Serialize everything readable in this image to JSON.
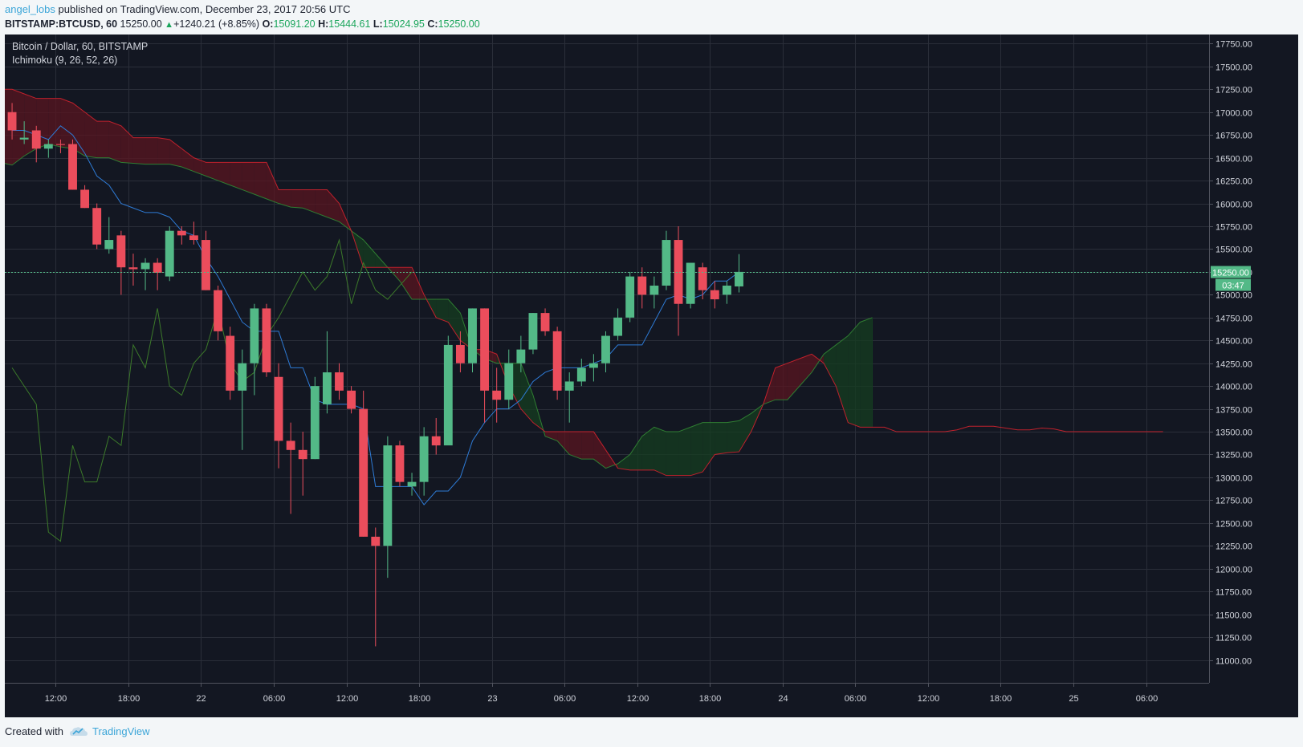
{
  "header": {
    "author": "angel_lobs",
    "published_text": " published on TradingView.com, December 23, 2017 20:56 UTC",
    "symbol": "BITSTAMP:BTCUSD, 60",
    "last": "15250.00",
    "change": "+1240.21 (+8.85%)",
    "o_label": "O:",
    "o_value": "15091.20",
    "h_label": "H:",
    "h_value": "15444.61",
    "l_label": "L:",
    "l_value": "15024.95",
    "c_label": "C:",
    "c_value": "15250.00"
  },
  "footer": {
    "created_with": "Created with",
    "brand": "TradingView",
    "logo_icon": "tradingview-cloud-icon"
  },
  "colors": {
    "background": "#131722",
    "grid": "#2a2e39",
    "up": "#53b987",
    "down": "#eb4d5c",
    "conversion": "#2e7bd6",
    "lagging": "#3c7a2a",
    "leading_a": "#2f7d32",
    "leading_b": "#c0212c",
    "cloud_bear": "#5a1520",
    "cloud_bull": "#153d20",
    "price_label": "#53b987"
  },
  "chart_data": {
    "type": "candlestick",
    "title": "Bitcoin / Dollar, 60, BITSTAMP",
    "indicator": "Ichimoku (9, 26, 52, 26)",
    "ylim": [
      10750,
      17850
    ],
    "y_ticks": [
      11000,
      11250,
      11500,
      11750,
      12000,
      12250,
      12500,
      12750,
      13000,
      13250,
      13500,
      13750,
      14000,
      14250,
      14500,
      14750,
      15000,
      15250,
      15500,
      15750,
      16000,
      16250,
      16500,
      16750,
      17000,
      17250,
      17500,
      17750
    ],
    "y_tick_labels": [
      "11000.00",
      "11250.00",
      "11500.00",
      "11750.00",
      "12000.00",
      "12250.00",
      "12500.00",
      "12750.00",
      "13000.00",
      "13250.00",
      "13500.00",
      "13750.00",
      "14000.00",
      "14250.00",
      "14500.00",
      "14750.00",
      "15000.00",
      "15250.00",
      "15500.00",
      "15750.00",
      "16000.00",
      "16250.00",
      "16500.00",
      "16750.00",
      "17000.00",
      "17250.00",
      "17500.00",
      "17750.00"
    ],
    "x_range": [
      -0.6,
      98.8
    ],
    "x_ticks": [
      {
        "i": 3.6,
        "label": "12:00"
      },
      {
        "i": 9.6,
        "label": "18:00"
      },
      {
        "i": 15.6,
        "label": "22"
      },
      {
        "i": 21.6,
        "label": "06:00"
      },
      {
        "i": 27.6,
        "label": "12:00"
      },
      {
        "i": 33.6,
        "label": "18:00"
      },
      {
        "i": 39.6,
        "label": "23"
      },
      {
        "i": 45.6,
        "label": "06:00"
      },
      {
        "i": 51.6,
        "label": "12:00"
      },
      {
        "i": 57.6,
        "label": "18:00"
      },
      {
        "i": 63.6,
        "label": "24"
      },
      {
        "i": 69.6,
        "label": "06:00"
      },
      {
        "i": 75.6,
        "label": "12:00"
      },
      {
        "i": 81.6,
        "label": "18:00"
      },
      {
        "i": 87.6,
        "label": "25"
      },
      {
        "i": 93.6,
        "label": "06:00"
      }
    ],
    "candles": [
      [
        17000,
        17100,
        16700,
        16800
      ],
      [
        16700,
        16900,
        16650,
        16720
      ],
      [
        16800,
        16850,
        16450,
        16600
      ],
      [
        16600,
        16700,
        16500,
        16650
      ],
      [
        16650,
        16700,
        16550,
        16640
      ],
      [
        16650,
        16700,
        16150,
        16150
      ],
      [
        16150,
        16200,
        15950,
        15950
      ],
      [
        15950,
        16000,
        15500,
        15550
      ],
      [
        15500,
        15850,
        15450,
        15600
      ],
      [
        15650,
        15700,
        15000,
        15300
      ],
      [
        15300,
        15450,
        15100,
        15280
      ],
      [
        15280,
        15400,
        15050,
        15350
      ],
      [
        15350,
        15400,
        15050,
        15240
      ],
      [
        15200,
        15750,
        15150,
        15700
      ],
      [
        15700,
        15750,
        15550,
        15650
      ],
      [
        15650,
        15800,
        15550,
        15600
      ],
      [
        15600,
        15700,
        15050,
        15050
      ],
      [
        15050,
        15100,
        14500,
        14600
      ],
      [
        14550,
        14650,
        13850,
        13950
      ],
      [
        13950,
        14400,
        13300,
        14250
      ],
      [
        14250,
        14900,
        13900,
        14850
      ],
      [
        14850,
        14900,
        14100,
        14150
      ],
      [
        14100,
        14250,
        13100,
        13400
      ],
      [
        13400,
        13600,
        12600,
        13300
      ],
      [
        13300,
        13500,
        12800,
        13200
      ],
      [
        13200,
        14100,
        13200,
        14000
      ],
      [
        13800,
        14600,
        13700,
        14150
      ],
      [
        14150,
        14250,
        13850,
        13950
      ],
      [
        13950,
        14000,
        13700,
        13750
      ],
      [
        13750,
        13950,
        12350,
        12350
      ],
      [
        12350,
        12450,
        11150,
        12250
      ],
      [
        12250,
        13450,
        11900,
        13350
      ],
      [
        13350,
        13400,
        12900,
        12950
      ],
      [
        12900,
        13050,
        12800,
        12950
      ],
      [
        12950,
        13550,
        12800,
        13450
      ],
      [
        13450,
        13650,
        13250,
        13350
      ],
      [
        13350,
        14550,
        13400,
        14450
      ],
      [
        14450,
        14600,
        14150,
        14250
      ],
      [
        14250,
        14850,
        14150,
        14850
      ],
      [
        14850,
        14850,
        13600,
        13950
      ],
      [
        13950,
        14200,
        13600,
        13850
      ],
      [
        13850,
        14400,
        13750,
        14250
      ],
      [
        14250,
        14550,
        14150,
        14400
      ],
      [
        14400,
        14800,
        14350,
        14800
      ],
      [
        14800,
        14850,
        14550,
        14600
      ],
      [
        14600,
        14650,
        13850,
        13950
      ],
      [
        13950,
        14150,
        13600,
        14050
      ],
      [
        14050,
        14300,
        14000,
        14200
      ],
      [
        14200,
        14350,
        14050,
        14250
      ],
      [
        14250,
        14600,
        14150,
        14550
      ],
      [
        14550,
        14850,
        14500,
        14750
      ],
      [
        14750,
        15250,
        14700,
        15200
      ],
      [
        15200,
        15300,
        14850,
        15000
      ],
      [
        15000,
        15200,
        14850,
        15100
      ],
      [
        15100,
        15700,
        15050,
        15600
      ],
      [
        15600,
        15750,
        14550,
        14900
      ],
      [
        14900,
        15350,
        14850,
        15350
      ],
      [
        15300,
        15350,
        14950,
        15050
      ],
      [
        15050,
        15150,
        14850,
        14950
      ],
      [
        15000,
        15150,
        14900,
        15100
      ],
      [
        15091.2,
        15444.61,
        15024.95,
        15250.0
      ]
    ],
    "series": [
      {
        "name": "conversion_line",
        "start": 0,
        "values": [
          16800,
          16800,
          16750,
          16700,
          16850,
          16750,
          16550,
          16300,
          16200,
          16000,
          15950,
          15900,
          15900,
          15850,
          15700,
          15650,
          15400,
          15200,
          14950,
          14700,
          14600,
          14600,
          14600,
          14200,
          14200,
          13850,
          13800,
          13800,
          13800,
          13750,
          12900,
          12900,
          12900,
          12900,
          12700,
          12850,
          12850,
          13000,
          13400,
          13600,
          13750,
          13750,
          13850,
          14050,
          14150,
          14200,
          14200,
          14200,
          14250,
          14300,
          14450,
          14450,
          14450,
          14700,
          14950,
          15000,
          14950,
          15000,
          15150,
          15150,
          15250
        ]
      },
      {
        "name": "lagging_span",
        "start": 0,
        "values": [
          14200,
          14000,
          13800,
          12400,
          12300,
          13350,
          12950,
          12950,
          13450,
          13350,
          14450,
          14200,
          14850,
          14000,
          13900,
          14250,
          14400,
          14850,
          14250,
          14050,
          14150,
          14550,
          14750,
          15000,
          15250,
          15050,
          15200,
          15600,
          14900,
          15350,
          15050,
          14950,
          15100,
          15250
        ]
      },
      {
        "name": "leading_span_a",
        "start": -26,
        "values": [
          17100,
          17100,
          17080,
          17050,
          17050,
          17050,
          17100,
          17050,
          17080,
          17070,
          17070,
          17080,
          17030,
          17030,
          17000,
          17000,
          16950,
          16900,
          16700,
          16600,
          16450,
          16420,
          16420,
          16400,
          16450,
          16450,
          16420,
          16520,
          16600,
          16650,
          16620,
          16600,
          16520,
          16500,
          16500,
          16450,
          16440,
          16430,
          16430,
          16430,
          16400,
          16350,
          16300,
          16250,
          16200,
          16150,
          16100,
          16050,
          16000,
          15960,
          15950,
          15900,
          15850,
          15800,
          15700,
          15600,
          15450,
          15300,
          15150,
          14950,
          14950,
          14950,
          14950,
          14800,
          14400,
          14300,
          14250,
          14250,
          14250,
          13900,
          13450,
          13400,
          13250,
          13200,
          13200,
          13100,
          13150,
          13250,
          13450,
          13550,
          13500,
          13500,
          13550,
          13600,
          13600,
          13600,
          13620,
          13700,
          13800,
          13850,
          13850,
          14000,
          14150,
          14350,
          14450,
          14550,
          14700,
          14750
        ]
      },
      {
        "name": "leading_span_b",
        "start": -26,
        "values": [
          17500,
          17500,
          17500,
          17500,
          17500,
          17500,
          17500,
          17500,
          17500,
          17480,
          17480,
          17480,
          17480,
          17480,
          17480,
          17480,
          17480,
          17480,
          17250,
          17250,
          17250,
          17250,
          17250,
          17250,
          17250,
          17250,
          17250,
          17200,
          17150,
          17150,
          17150,
          17100,
          17000,
          16900,
          16900,
          16850,
          16720,
          16720,
          16720,
          16700,
          16600,
          16500,
          16450,
          16450,
          16450,
          16450,
          16450,
          16450,
          16150,
          16150,
          16150,
          16150,
          16150,
          16000,
          15700,
          15300,
          15300,
          15300,
          15300,
          15300,
          15000,
          14750,
          14700,
          14500,
          14400,
          14400,
          14350,
          14000,
          13750,
          13600,
          13500,
          13500,
          13500,
          13500,
          13500,
          13300,
          13100,
          13080,
          13080,
          13080,
          13020,
          13020,
          13020,
          13060,
          13250,
          13270,
          13280,
          13500,
          13800,
          14200,
          14250,
          14300,
          14350,
          14250,
          14000,
          13600,
          13550,
          13550,
          13550,
          13500,
          13500,
          13500,
          13500,
          13500,
          13520,
          13560,
          13560,
          13560,
          13540,
          13520,
          13520,
          13540,
          13530,
          13500,
          13500,
          13500,
          13500,
          13500,
          13500,
          13500,
          13500,
          13500
        ]
      }
    ],
    "current_price": 15250.0,
    "current_price_label": "15250.00",
    "countdown": "03:47"
  }
}
